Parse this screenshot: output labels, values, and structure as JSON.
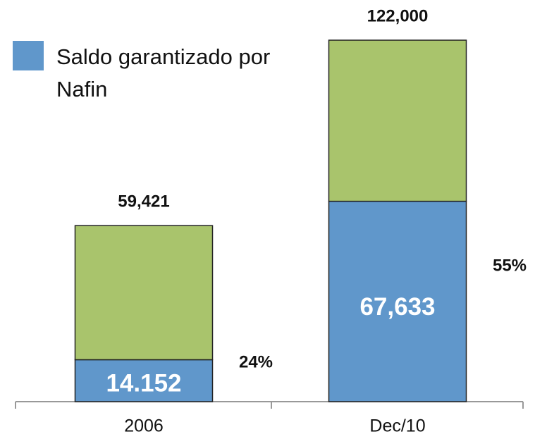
{
  "chart_data": {
    "type": "stacked_bar",
    "categories": [
      "2006",
      "Dec/10"
    ],
    "series": [
      {
        "name": "Saldo garantizado por Nafin",
        "color": "#6097cb",
        "values": [
          14152,
          67633
        ],
        "value_labels": [
          "14.152",
          "67,633"
        ]
      },
      {
        "color": "#a9c46c",
        "values": [
          45269,
          54367
        ]
      }
    ],
    "totals": {
      "values": [
        59421,
        122000
      ],
      "value_labels": [
        "59,421",
        "122,000"
      ]
    },
    "shares": {
      "values": [
        24,
        55
      ],
      "value_labels": [
        "24%",
        "55%"
      ]
    },
    "ylim": [
      0,
      122000
    ],
    "legend": "top-left"
  }
}
